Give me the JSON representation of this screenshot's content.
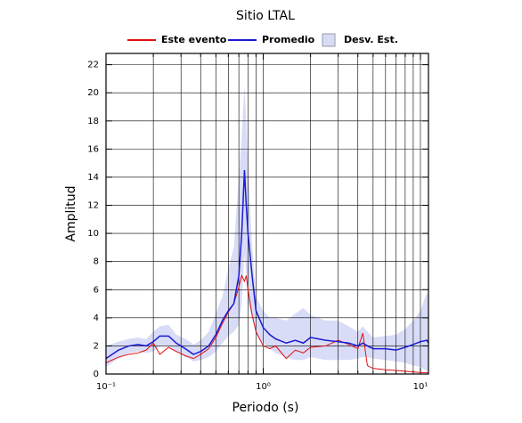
{
  "chart_data": {
    "type": "line",
    "title": "Sitio LTAL",
    "xlabel": "Periodo (s)",
    "ylabel": "Amplitud",
    "xscale": "log",
    "grid": true,
    "xlim": [
      0.1,
      11.25
    ],
    "ylim": [
      0,
      22.8
    ],
    "xticks": [
      {
        "value": 0.1,
        "label": "10⁻¹"
      },
      {
        "value": 1,
        "label": "10⁰"
      },
      {
        "value": 10,
        "label": "10¹"
      }
    ],
    "xminorticks": [
      0.2,
      0.3,
      0.4,
      0.5,
      0.6,
      0.7,
      0.8,
      0.9,
      2,
      3,
      4,
      5,
      6,
      7,
      8,
      9
    ],
    "yticks": [
      0,
      2,
      4,
      6,
      8,
      10,
      12,
      14,
      16,
      18,
      20,
      22
    ],
    "x": [
      0.1,
      0.12,
      0.14,
      0.16,
      0.18,
      0.2,
      0.22,
      0.25,
      0.28,
      0.32,
      0.36,
      0.4,
      0.45,
      0.5,
      0.55,
      0.6,
      0.65,
      0.7,
      0.73,
      0.76,
      0.78,
      0.8,
      0.85,
      0.9,
      1.0,
      1.1,
      1.2,
      1.4,
      1.6,
      1.8,
      2,
      2.5,
      3,
      3.5,
      4,
      4.3,
      4.6,
      5,
      6,
      7,
      8,
      9,
      10,
      11,
      11.25
    ],
    "band": {
      "name": "Desv. Est.",
      "color": "#d9dcf7",
      "upper": [
        2.0,
        2.3,
        2.5,
        2.6,
        2.5,
        3.0,
        3.4,
        3.5,
        2.8,
        2.5,
        2.1,
        2.4,
        3.0,
        4.3,
        5.5,
        7.5,
        9,
        14,
        17,
        20.5,
        18,
        15,
        9,
        5.5,
        4.5,
        4.0,
        4.0,
        3.8,
        4.3,
        4.7,
        4.2,
        3.8,
        3.8,
        3.4,
        3.0,
        3.4,
        3.0,
        2.6,
        2.7,
        2.8,
        3.2,
        3.8,
        4.5,
        5.8,
        5.5
      ],
      "lower": [
        0.5,
        1.1,
        1.5,
        1.6,
        1.5,
        1.6,
        2.0,
        2.0,
        1.6,
        1.2,
        0.9,
        1.0,
        1.2,
        1.6,
        2.2,
        2.7,
        3.0,
        3.5,
        5,
        8.5,
        7,
        5,
        4,
        2.8,
        2.2,
        1.8,
        1.5,
        1.2,
        1.0,
        1.0,
        1.2,
        1.0,
        1.0,
        1.0,
        1.1,
        1.2,
        1.2,
        1.1,
        1.0,
        0.9,
        0.8,
        0.6,
        0.5,
        0.2,
        0.2
      ]
    },
    "series": [
      {
        "name": "Este evento",
        "color": "#e01010",
        "values": [
          0.8,
          1.2,
          1.4,
          1.5,
          1.7,
          2.2,
          1.4,
          1.9,
          1.6,
          1.3,
          1.1,
          1.4,
          1.8,
          2.6,
          3.6,
          4.4,
          5.0,
          6.2,
          7.0,
          6.6,
          7.0,
          6.0,
          4.2,
          3.0,
          2.0,
          1.8,
          2.0,
          1.1,
          1.7,
          1.5,
          1.9,
          2.0,
          2.4,
          2.1,
          1.8,
          2.9,
          0.6,
          0.4,
          0.3,
          0.25,
          0.2,
          0.15,
          0.1,
          0.1,
          0.05
        ]
      },
      {
        "name": "Promedio",
        "color": "#1a1ad0",
        "values": [
          1.1,
          1.7,
          2.0,
          2.1,
          2.0,
          2.3,
          2.7,
          2.7,
          2.2,
          1.8,
          1.4,
          1.6,
          2.0,
          2.8,
          3.8,
          4.5,
          5.0,
          7,
          10,
          14.5,
          12,
          10,
          7,
          4.5,
          3.3,
          2.8,
          2.5,
          2.2,
          2.4,
          2.2,
          2.6,
          2.4,
          2.3,
          2.2,
          2.0,
          2.2,
          2.0,
          1.8,
          1.8,
          1.7,
          1.9,
          2.1,
          2.3,
          2.4,
          2.2
        ]
      }
    ]
  }
}
